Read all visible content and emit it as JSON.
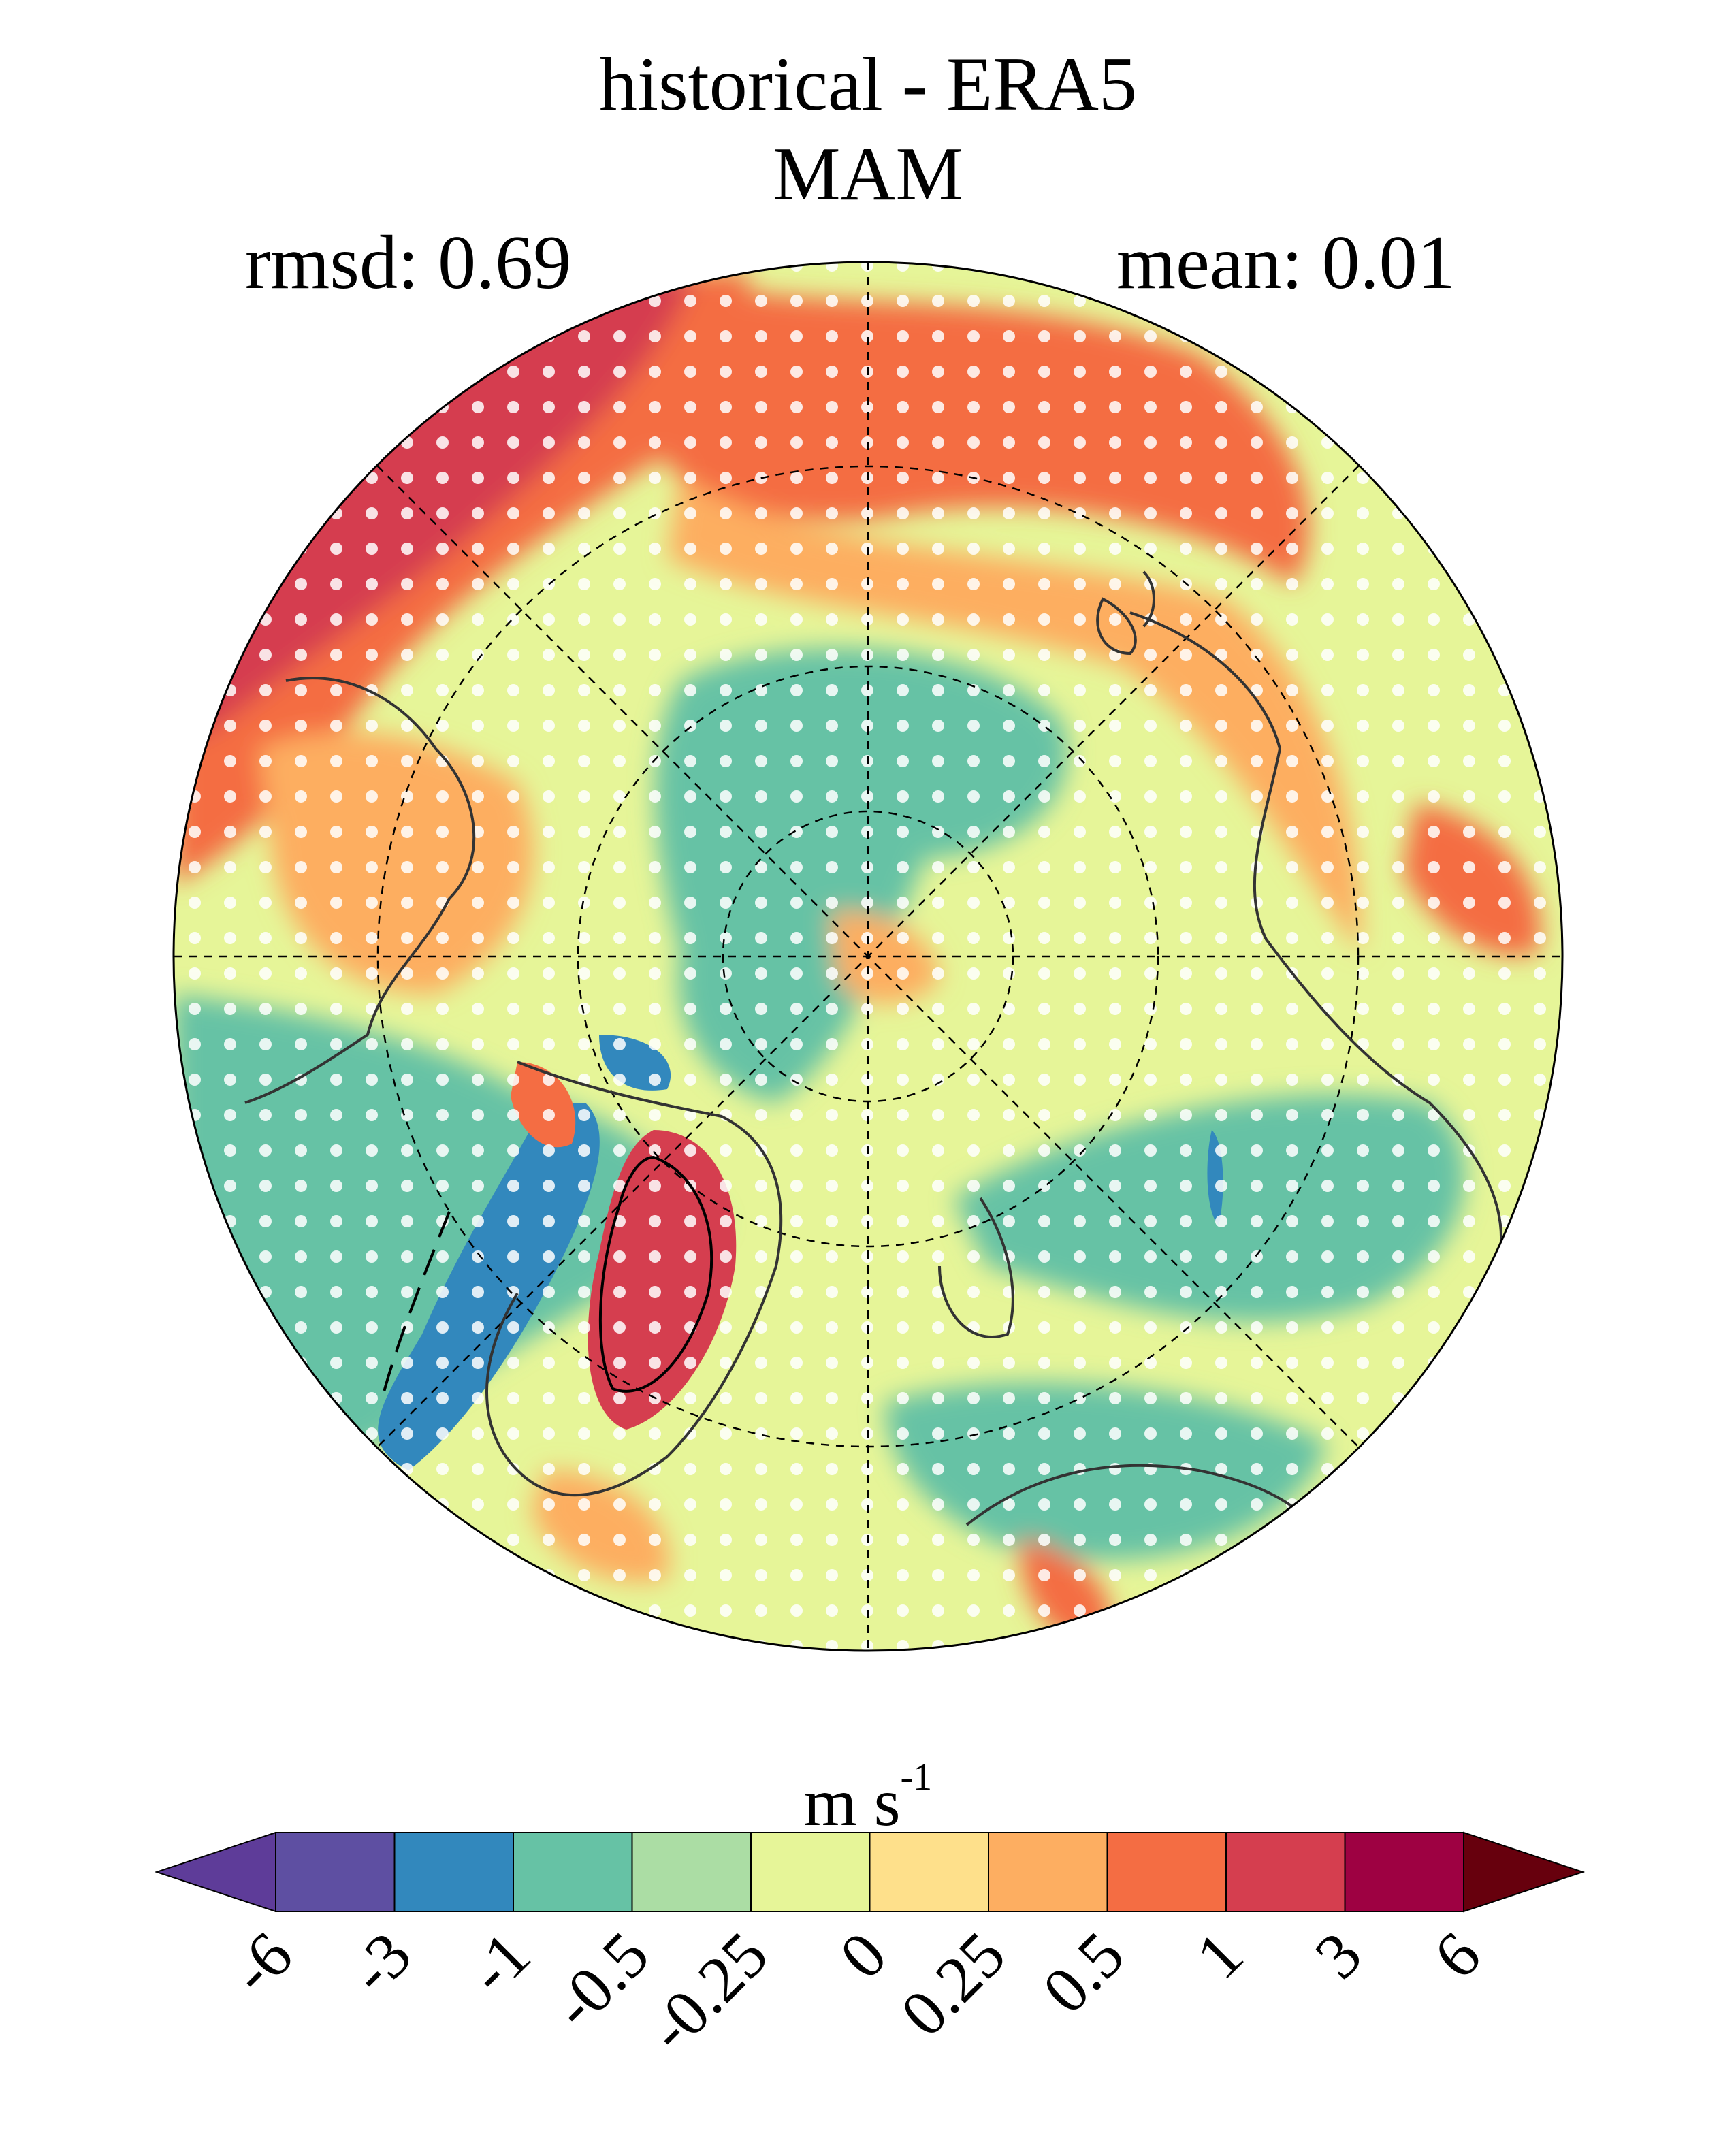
{
  "title": "historical - ERA5",
  "subtitle": "MAM",
  "stats": {
    "rmsd_label": "rmsd: 0.69",
    "mean_label": "mean: 0.01"
  },
  "colorbar": {
    "units": "m s",
    "units_exponent": "-1",
    "tick_labels": [
      "-6",
      "-3",
      "-1",
      "-0.5",
      "-0.25",
      "0",
      "0.25",
      "0.5",
      "1",
      "3",
      "6"
    ],
    "colors": [
      "#5e3c99",
      "#5e4fa2",
      "#3288bd",
      "#66c2a5",
      "#abdda4",
      "#e6f598",
      "#fee08b",
      "#fdae61",
      "#f46d43",
      "#d53e4f",
      "#9e0142",
      "#67000d"
    ]
  },
  "map": {
    "projection": "north polar stereographic",
    "stippling": "white dots",
    "background": "#e6f598"
  }
}
